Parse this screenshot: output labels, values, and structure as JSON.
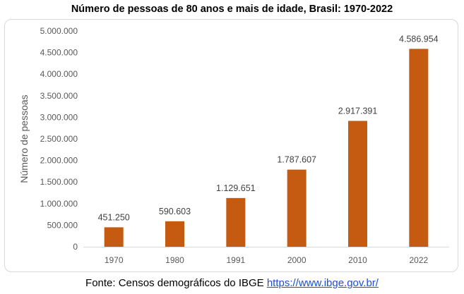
{
  "chart_data": {
    "type": "bar",
    "title": "Número de pessoas de 80 anos e mais de idade, Brasil: 1970-2022",
    "ylabel": "Número de pessoas",
    "xlabel": "",
    "categories": [
      "1970",
      "1980",
      "1991",
      "2000",
      "2010",
      "2022"
    ],
    "values": [
      451250,
      590603,
      1129651,
      1787607,
      2917391,
      4586954
    ],
    "value_labels": [
      "451.250",
      "590.603",
      "1.129.651",
      "1.787.607",
      "2.917.391",
      "4.586.954"
    ],
    "ylim": [
      0,
      5000000
    ],
    "yticks": [
      0,
      500000,
      1000000,
      1500000,
      2000000,
      2500000,
      3000000,
      3500000,
      4000000,
      4500000,
      5000000
    ],
    "ytick_labels": [
      "0",
      "500.000",
      "1.000.000",
      "1.500.000",
      "2.000.000",
      "2.500.000",
      "3.000.000",
      "3.500.000",
      "4.000.000",
      "4.500.000",
      "5.000.000"
    ],
    "bar_color": "#c55a11",
    "grid": false,
    "legend": "none"
  },
  "source": {
    "text": "Fonte: Censos demográficos do  IBGE ",
    "link": "https://www.ibge.gov.br/"
  }
}
